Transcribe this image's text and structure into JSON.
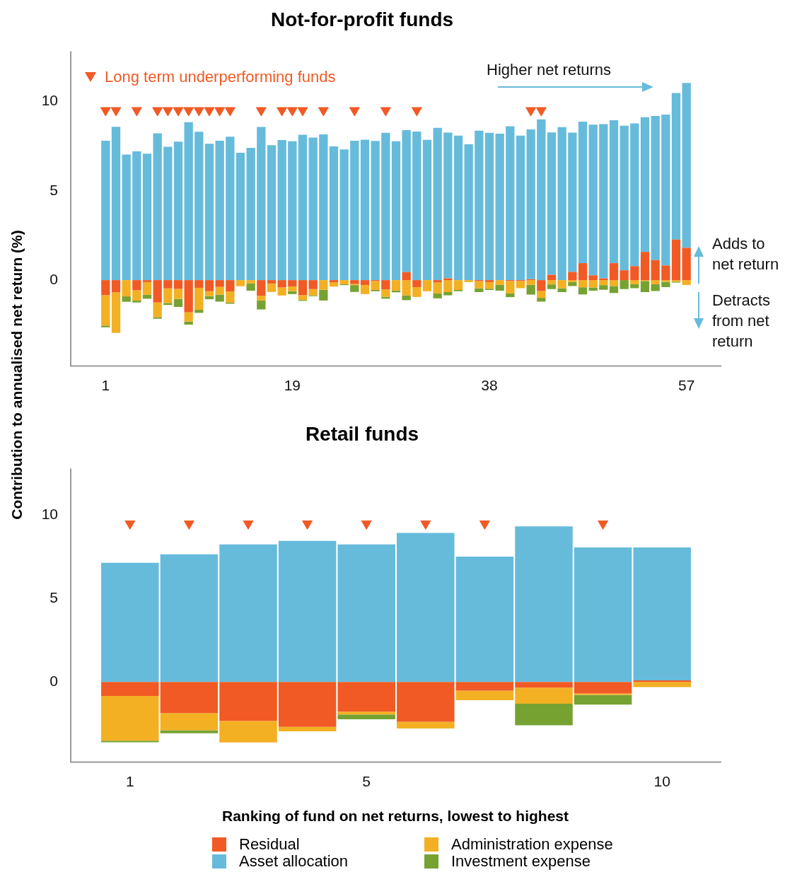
{
  "chart_data": [
    {
      "type": "bar",
      "title": "Not-for-profit funds",
      "ylabel": "Contribution to annualised net return (%)",
      "stacked": true,
      "grid": false,
      "legend": "top left",
      "marker": "triangle",
      "annotations": [
        "Higher net returns",
        "Adds to net return",
        "Detracts from net return"
      ],
      "categories": [
        "1",
        null,
        null,
        null,
        null,
        null,
        null,
        null,
        null,
        null,
        null,
        null,
        null,
        null,
        null,
        null,
        null,
        null,
        "19",
        null,
        null,
        null,
        null,
        null,
        null,
        null,
        null,
        null,
        null,
        null,
        null,
        null,
        null,
        null,
        null,
        null,
        null,
        "38",
        null,
        null,
        null,
        null,
        null,
        null,
        null,
        null,
        null,
        null,
        null,
        null,
        null,
        null,
        null,
        null,
        null,
        null,
        "57"
      ],
      "ylim": [
        -4.8,
        12.8
      ],
      "yticks": [
        0,
        5,
        10
      ],
      "series": [
        {
          "color": "#f15a24",
          "values": [
            -0.84,
            -0.68,
            null,
            -0.57,
            -0.11,
            -1.25,
            -0.46,
            -0.49,
            -1.8,
            -0.43,
            -0.62,
            -0.38,
            -0.63,
            null,
            null,
            -0.88,
            -0.19,
            -0.41,
            -0.35,
            -0.84,
            -0.5,
            null,
            -0.12,
            null,
            -0.21,
            -0.27,
            -0.05,
            -0.52,
            null,
            0.45,
            -0.39,
            null,
            -0.13,
            0.1,
            null,
            null,
            -0.06,
            -0.11,
            null,
            -0.05,
            -0.05,
            0.05,
            -0.61,
            0.3,
            null,
            0.46,
            0.95,
            0.27,
            0.1,
            0.95,
            0.55,
            0.78,
            1.58,
            1.12,
            0.82,
            2.27,
            1.81
          ]
        },
        {
          "color": "#66bbdb",
          "values": [
            7.8,
            8.58,
            7.03,
            7.21,
            7.08,
            8.21,
            7.46,
            7.75,
            8.84,
            8.3,
            7.63,
            7.8,
            8.03,
            7.13,
            7.4,
            8.57,
            7.55,
            7.84,
            7.77,
            8.13,
            7.98,
            8.15,
            7.48,
            7.31,
            7.8,
            7.86,
            7.79,
            8.24,
            7.77,
            7.94,
            8.31,
            7.85,
            8.52,
            8.15,
            8.09,
            7.6,
            8.36,
            8.24,
            8.19,
            8.61,
            8.09,
            8.38,
            9.0,
            7.96,
            8.56,
            7.79,
            7.92,
            8.43,
            8.63,
            8.0,
            8.09,
            7.99,
            7.53,
            8.06,
            8.44,
            8.2,
            9.22
          ]
        },
        {
          "color": "#f3b023",
          "values": [
            -1.7,
            -2.27,
            -0.91,
            -0.57,
            -0.71,
            -0.82,
            -0.82,
            -0.56,
            -0.52,
            -1.23,
            -0.27,
            -0.43,
            -0.63,
            -0.34,
            -0.19,
            -0.26,
            -0.47,
            -0.45,
            -0.27,
            -0.27,
            -0.35,
            -0.54,
            -0.24,
            -0.23,
            -0.07,
            -0.51,
            -0.5,
            -0.41,
            -0.58,
            -0.86,
            -0.55,
            -0.62,
            -0.62,
            -0.67,
            -0.55,
            -0.11,
            -0.4,
            -0.37,
            -0.27,
            -0.7,
            -0.4,
            -0.27,
            -0.38,
            -0.24,
            -0.46,
            -0.11,
            -0.4,
            -0.41,
            -0.28,
            -0.33,
            null,
            -0.23,
            -0.05,
            -0.23,
            -0.1,
            -0.09,
            -0.27
          ]
        },
        {
          "color": "#76a232",
          "values": [
            -0.1,
            null,
            -0.3,
            -0.11,
            -0.22,
            -0.09,
            -0.11,
            -0.45,
            -0.17,
            -0.17,
            -0.18,
            -0.39,
            -0.06,
            null,
            -0.4,
            -0.5,
            null,
            null,
            -0.16,
            -0.05,
            -0.05,
            -0.6,
            null,
            -0.05,
            -0.38,
            null,
            -0.07,
            -0.11,
            -0.1,
            -0.26,
            null,
            null,
            -0.27,
            -0.18,
            -0.07,
            null,
            -0.21,
            -0.07,
            -0.32,
            -0.2,
            null,
            -0.54,
            -0.21,
            -0.26,
            -0.21,
            -0.22,
            -0.4,
            -0.18,
            -0.26,
            -0.39,
            -0.5,
            -0.22,
            -0.62,
            -0.38,
            -0.29,
            -0.05,
            null
          ]
        },
        {
          "type": "scatter",
          "name": "Long term underperforming funds",
          "color": "#f15a24",
          "values": [
            9.5,
            9.5,
            null,
            9.5,
            null,
            9.5,
            9.5,
            9.5,
            9.5,
            9.5,
            9.5,
            9.5,
            9.5,
            null,
            null,
            9.5,
            null,
            9.5,
            9.5,
            9.5,
            null,
            9.5,
            null,
            null,
            9.5,
            null,
            null,
            9.5,
            null,
            null,
            9.5,
            null,
            null,
            null,
            null,
            null,
            null,
            null,
            null,
            null,
            null,
            9.5,
            9.5,
            null,
            null,
            null,
            null,
            null,
            null,
            null,
            null,
            null,
            null,
            null,
            null,
            null,
            null
          ]
        }
      ]
    },
    {
      "type": "bar",
      "title": "Retail funds",
      "xlabel": "Ranking of fund on net returns, lowest to highest",
      "stacked": true,
      "grid": false,
      "legend": "bottom",
      "marker": "triangle",
      "categories": [
        "1",
        null,
        null,
        null,
        "5",
        null,
        null,
        null,
        null,
        "10"
      ],
      "ylim": [
        -4.8,
        12.8
      ],
      "yticks": [
        0,
        5,
        10
      ],
      "series": [
        {
          "name": "Residual",
          "color": "#f15a24",
          "values": [
            -0.84,
            -1.87,
            -2.33,
            -2.69,
            -1.78,
            -2.39,
            -0.52,
            -0.34,
            -0.69,
            0.1
          ]
        },
        {
          "name": "Asset allocation",
          "color": "#66bbdb",
          "values": [
            7.15,
            7.66,
            8.25,
            8.47,
            8.25,
            8.94,
            7.52,
            9.34,
            8.07,
            7.97
          ]
        },
        {
          "name": "Administration expense",
          "color": "#f3b023",
          "values": [
            -2.68,
            -1.03,
            -1.3,
            -0.27,
            -0.17,
            -0.4,
            -0.57,
            -0.96,
            -0.08,
            -0.31
          ]
        },
        {
          "name": "Investment expense",
          "color": "#76a232",
          "values": [
            -0.1,
            -0.17,
            null,
            null,
            -0.29,
            null,
            null,
            -1.3,
            -0.59,
            null
          ]
        },
        {
          "type": "scatter",
          "color": "#f15a24",
          "values": [
            9.5,
            9.5,
            9.5,
            9.5,
            9.5,
            9.5,
            9.5,
            null,
            9.5,
            null
          ]
        }
      ]
    }
  ]
}
